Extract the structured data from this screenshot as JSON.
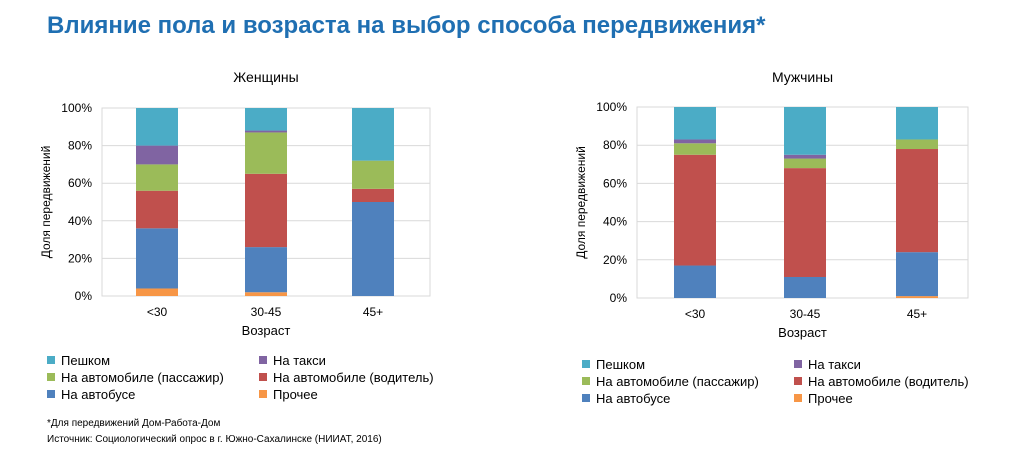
{
  "header": {
    "title": "Влияние пола и возраста на выбор способа передвижения*"
  },
  "legend_items": [
    {
      "label": "Пешком",
      "color": "#4bacc6"
    },
    {
      "label": "На такси",
      "color": "#8064a2"
    },
    {
      "label": "На автомобиле (пассажир)",
      "color": "#9bbb59"
    },
    {
      "label": "На автомобиле (водитель)",
      "color": "#c0504d"
    },
    {
      "label": "На автобусе",
      "color": "#4f81bd"
    },
    {
      "label": "Прочее",
      "color": "#f79646"
    }
  ],
  "chart_data": [
    {
      "type": "bar",
      "stacked": true,
      "title": "Женщины",
      "xlabel": "Возраст",
      "ylabel": "Доля передвижений",
      "categories": [
        "<30",
        "30-45",
        "45+"
      ],
      "yticks": [
        "0%",
        "20%",
        "40%",
        "60%",
        "80%",
        "100%"
      ],
      "ylim": [
        0,
        100
      ],
      "grid": true,
      "legend": "bottom",
      "series": [
        {
          "name": "Прочее",
          "color": "#f79646",
          "values": [
            4,
            2,
            0
          ]
        },
        {
          "name": "На автобусе",
          "color": "#4f81bd",
          "values": [
            32,
            24,
            50
          ]
        },
        {
          "name": "На автомобиле (водитель)",
          "color": "#c0504d",
          "values": [
            20,
            39,
            7
          ]
        },
        {
          "name": "На автомобиле (пассажир)",
          "color": "#9bbb59",
          "values": [
            14,
            22,
            15
          ]
        },
        {
          "name": "На такси",
          "color": "#8064a2",
          "values": [
            10,
            1,
            0
          ]
        },
        {
          "name": "Пешком",
          "color": "#4bacc6",
          "values": [
            20,
            12,
            28
          ]
        }
      ]
    },
    {
      "type": "bar",
      "stacked": true,
      "title": "Мужчины",
      "xlabel": "Возраст",
      "ylabel": "Доля передвижений",
      "categories": [
        "<30",
        "30-45",
        "45+"
      ],
      "yticks": [
        "0%",
        "20%",
        "40%",
        "60%",
        "80%",
        "100%"
      ],
      "ylim": [
        0,
        100
      ],
      "grid": true,
      "legend": "bottom",
      "series": [
        {
          "name": "Прочее",
          "color": "#f79646",
          "values": [
            0,
            0,
            1
          ]
        },
        {
          "name": "На автобусе",
          "color": "#4f81bd",
          "values": [
            17,
            11,
            23
          ]
        },
        {
          "name": "На автомобиле (водитель)",
          "color": "#c0504d",
          "values": [
            58,
            57,
            54
          ]
        },
        {
          "name": "На автомобиле (пассажир)",
          "color": "#9bbb59",
          "values": [
            6,
            5,
            5
          ]
        },
        {
          "name": "На такси",
          "color": "#8064a2",
          "values": [
            2,
            2,
            0
          ]
        },
        {
          "name": "Пешком",
          "color": "#4bacc6",
          "values": [
            17,
            25,
            17
          ]
        }
      ]
    }
  ],
  "footnotes": {
    "note": "*Для передвижений Дом-Работа-Дом",
    "source": "Источник: Социологический опрос в г. Южно-Сахалинске (НИИАТ, 2016)"
  }
}
